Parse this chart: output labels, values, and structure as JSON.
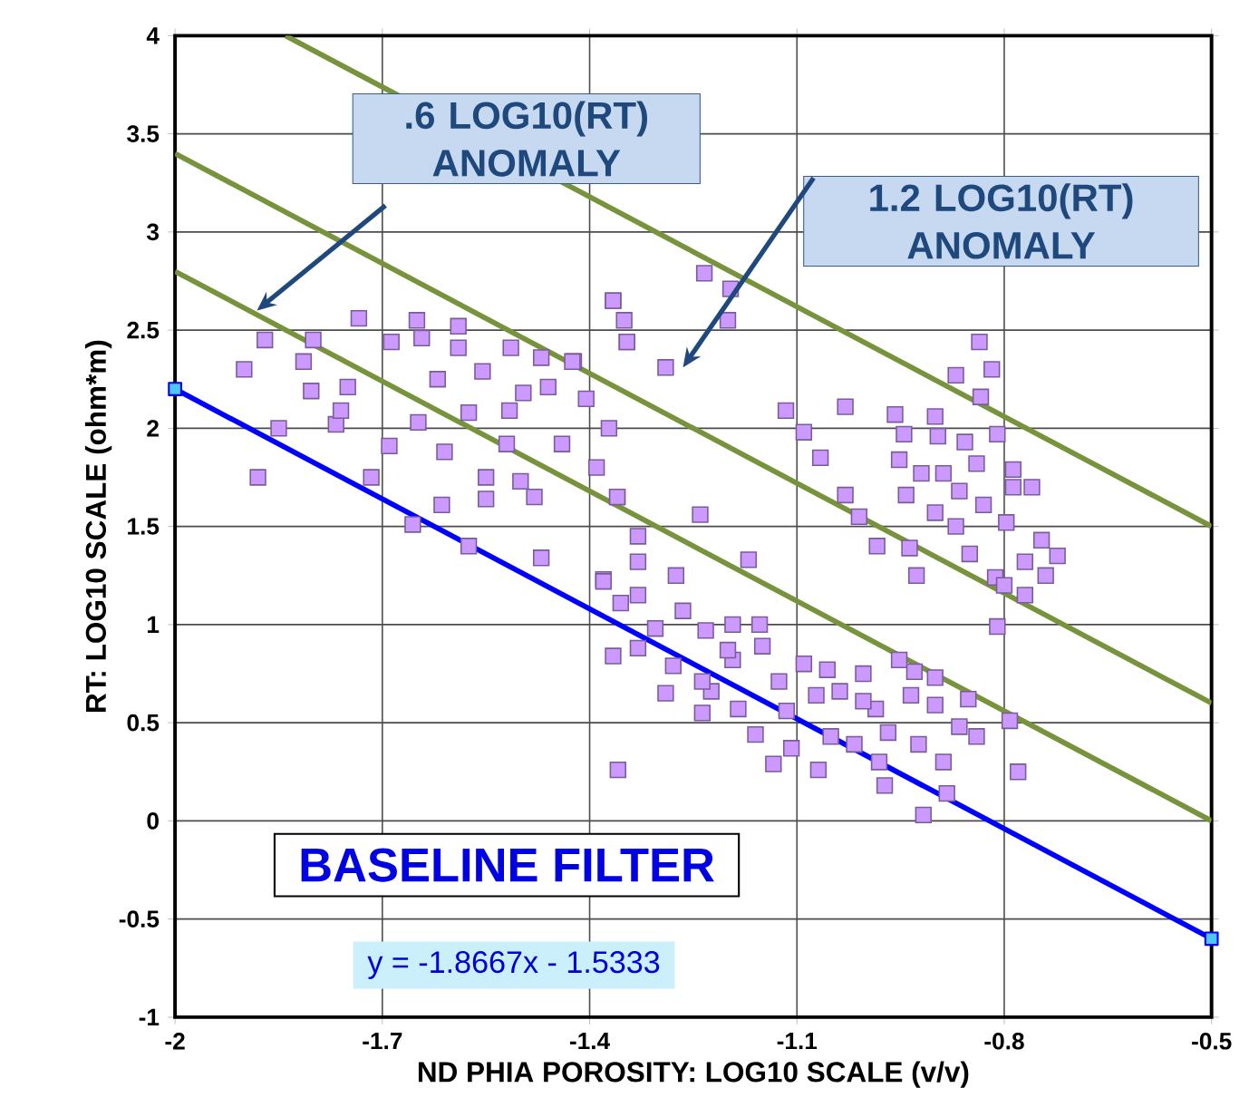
{
  "chart_data": {
    "type": "scatter",
    "xlabel": "ND PHIA POROSITY: LOG10 SCALE (v/v)",
    "ylabel": "RT: LOG10 SCALE (ohm*m)",
    "xlim": [
      -2,
      -0.5
    ],
    "ylim": [
      -1,
      4
    ],
    "xticks": [
      -2,
      -1.7,
      -1.4,
      -1.1,
      -0.8,
      -0.5
    ],
    "yticks": [
      -1,
      -0.5,
      0,
      0.5,
      1,
      1.5,
      2,
      2.5,
      3,
      3.5,
      4
    ],
    "grid": true,
    "series": [
      {
        "type": "line",
        "color": "#77933c",
        "marker": "none",
        "x": [
          -2,
          -0.5
        ],
        "values": [
          2.8,
          0.0
        ]
      },
      {
        "type": "line",
        "color": "#77933c",
        "marker": "none",
        "x": [
          -2,
          -0.5
        ],
        "values": [
          3.4,
          0.6
        ]
      },
      {
        "type": "line",
        "color": "#77933c",
        "marker": "none",
        "x": [
          -1.84,
          -0.5
        ],
        "values": [
          4,
          1.5
        ]
      },
      {
        "color": "#cc99ff",
        "marker": "square",
        "x": [
          -1.734,
          -1.8,
          -1.814,
          -1.803,
          -1.75,
          -1.767,
          -1.687,
          -1.643,
          -1.59,
          -1.59,
          -1.514,
          -1.47,
          -1.423,
          -1.46,
          -1.405,
          -1.372,
          -1.39,
          -1.36,
          -1.69,
          -1.648,
          -1.575,
          -1.516,
          -1.61,
          -1.52,
          -1.44,
          -1.55,
          -1.5,
          -1.614,
          -1.716,
          -1.656,
          -1.55,
          -1.48,
          -1.575,
          -1.47,
          -1.33,
          -1.33,
          -1.38,
          -1.366,
          -1.346,
          -1.62,
          -1.555,
          -1.496,
          -1.76,
          -1.87,
          -1.9,
          -1.88,
          -1.85,
          -1.65,
          -1.234,
          -1.196,
          -1.2,
          -1.366,
          -1.35,
          -1.346,
          -1.29,
          -1.425,
          -1.116,
          -1.03,
          -1.09,
          -1.066,
          -1.03,
          -1.01,
          -0.984,
          -0.937,
          -0.927,
          -1.24,
          -1.17,
          -1.36,
          -0.836,
          -0.818,
          -0.87,
          -0.834,
          -0.958,
          -0.9,
          -0.945,
          -0.896,
          -0.81,
          -0.857,
          -0.952,
          -0.92,
          -0.888,
          -0.84,
          -0.787,
          -0.942,
          -0.865,
          -0.787,
          -0.9,
          -0.83,
          -0.76,
          -0.87,
          -0.797,
          -0.746,
          -0.77,
          -0.85,
          -0.723,
          -0.813,
          -0.81,
          -0.74,
          -0.77,
          -0.8,
          -1.38,
          -1.275,
          -1.33,
          -1.355,
          -1.265,
          -1.232,
          -1.193,
          -1.154,
          -1.15,
          -1.366,
          -1.33,
          -1.279,
          -1.29,
          -1.224,
          -1.193,
          -1.126,
          -1.09,
          -1.056,
          -1.004,
          -0.93,
          -1.038,
          -0.986,
          -0.935,
          -0.9,
          -0.852,
          -1.185,
          -1.115,
          -1.072,
          -1.108,
          -1.134,
          -1.069,
          -1.017,
          -0.981,
          -0.973,
          -0.924,
          -0.888,
          -0.84,
          -0.917,
          -0.883,
          -0.792,
          -0.78,
          -1.359,
          -1.237,
          -0.968,
          -1.051,
          -1.16,
          -1.237,
          -1.004,
          -0.865,
          -0.952,
          -0.9,
          -1.305,
          -1.2
        ],
        "values": [
          2.56,
          2.45,
          2.34,
          2.19,
          2.21,
          2.02,
          2.44,
          2.46,
          2.52,
          2.41,
          2.41,
          2.36,
          2.34,
          2.21,
          2.15,
          2.0,
          1.8,
          1.65,
          1.91,
          2.03,
          2.08,
          2.09,
          1.88,
          1.92,
          1.92,
          1.75,
          1.73,
          1.61,
          1.75,
          1.51,
          1.64,
          1.65,
          1.4,
          1.34,
          1.45,
          1.32,
          1.23,
          2.65,
          2.44,
          2.25,
          2.29,
          2.18,
          2.09,
          2.45,
          2.3,
          1.75,
          2.0,
          2.55,
          2.79,
          2.71,
          2.55,
          2.65,
          2.55,
          2.44,
          2.31,
          2.34,
          2.09,
          2.11,
          1.98,
          1.85,
          1.66,
          1.55,
          1.4,
          1.39,
          1.25,
          1.56,
          1.33,
          1.65,
          2.44,
          2.3,
          2.27,
          2.16,
          2.07,
          2.06,
          1.97,
          1.96,
          1.97,
          1.93,
          1.84,
          1.77,
          1.77,
          1.82,
          1.79,
          1.66,
          1.68,
          1.7,
          1.57,
          1.61,
          1.7,
          1.5,
          1.52,
          1.43,
          1.32,
          1.36,
          1.35,
          1.24,
          0.99,
          1.25,
          1.15,
          1.2,
          1.22,
          1.25,
          1.15,
          1.11,
          1.07,
          0.97,
          1.0,
          1.0,
          0.89,
          0.84,
          0.88,
          0.79,
          0.65,
          0.66,
          0.82,
          0.71,
          0.8,
          0.77,
          0.75,
          0.76,
          0.66,
          0.57,
          0.64,
          0.59,
          0.62,
          0.57,
          0.56,
          0.64,
          0.37,
          0.29,
          0.26,
          0.39,
          0.3,
          0.18,
          0.39,
          0.3,
          0.43,
          0.03,
          0.14,
          0.51,
          0.25,
          0.26,
          0.71,
          0.45,
          0.43,
          0.44,
          0.55,
          0.61,
          0.48,
          0.82,
          0.73,
          0.98,
          0.87
        ]
      },
      {
        "type": "line",
        "color": "#0000ff",
        "marker": "square",
        "x": [
          -2,
          -0.5
        ],
        "values": [
          2.2,
          -0.6
        ]
      }
    ],
    "annotations": [
      ".6 LOG10(RT) ANOMALY",
      "1.2 LOG10(RT) ANOMALY",
      "BASELINE FILTER",
      "y = -1.8667x - 1.5333"
    ]
  }
}
